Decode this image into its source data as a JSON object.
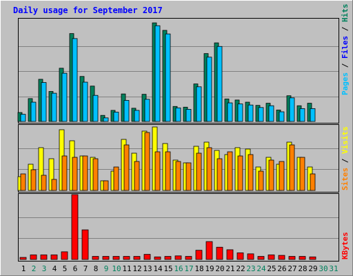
{
  "chart_data": {
    "type": "bar",
    "title": "Daily usage for September 2017",
    "categories": [
      "1",
      "2",
      "3",
      "4",
      "5",
      "6",
      "7",
      "8",
      "9",
      "10",
      "11",
      "12",
      "13",
      "14",
      "15",
      "16",
      "17",
      "18",
      "19",
      "20",
      "21",
      "22",
      "23",
      "24",
      "25",
      "26",
      "27",
      "28",
      "29",
      "30",
      "31"
    ],
    "weekend_days": [
      "2",
      "3",
      "9",
      "10",
      "16",
      "17",
      "23",
      "24",
      "30",
      "31"
    ],
    "panels": [
      {
        "id": "hits_files_pages",
        "axis_max_label": "282",
        "ylim": [
          0,
          282
        ],
        "ylabel_parts": [
          "Pages",
          "Files",
          "Hits"
        ],
        "series": [
          {
            "name": "Hits",
            "color": "#00805c",
            "values": [
              25,
              64,
              118,
              84,
              149,
              246,
              126,
              99,
              17,
              31,
              77,
              37,
              76,
              276,
              255,
              42,
              40,
              105,
              190,
              220,
              63,
              60,
              54,
              45,
              51,
              32,
              72,
              44,
              51
            ]
          },
          {
            "name": "Files",
            "color": "#00c0ff",
            "values": [
              20,
              54,
              109,
              79,
              135,
              232,
              110,
              73,
              10,
              26,
              59,
              31,
              62,
              268,
              245,
              38,
              34,
              97,
              180,
              210,
              52,
              49,
              46,
              39,
              44,
              27,
              66,
              36,
              36
            ]
          },
          {
            "name": "Pages",
            "color": "#00c0ff",
            "values": [
              0,
              0,
              0,
              0,
              0,
              0,
              0,
              0,
              0,
              0,
              0,
              0,
              0,
              0,
              0,
              0,
              0,
              0,
              0,
              0,
              0,
              0,
              0,
              0,
              0,
              0,
              0,
              0,
              0
            ]
          }
        ]
      },
      {
        "id": "visits_sites",
        "axis_max_label": "46",
        "ylim": [
          0,
          46
        ],
        "ylabel_parts": [
          "Sites",
          "Visits"
        ],
        "series": [
          {
            "name": "Visits",
            "color": "#ffff00",
            "values": [
              10,
              19,
              31,
              23,
              44,
              36,
              25,
              24,
              7,
              14,
              37,
              27,
              43,
              46,
              34,
              22,
              20,
              32,
              35,
              29,
              26,
              31,
              30,
              17,
              24,
              19,
              35,
              24,
              17
            ]
          },
          {
            "name": "Sites",
            "color": "#ff8000",
            "values": [
              12,
              15,
              11,
              8,
              25,
              24,
              25,
              23,
              7,
              17,
              33,
              21,
              42,
              28,
              28,
              21,
              20,
              27,
              31,
              23,
              28,
              25,
              26,
              14,
              22,
              21,
              33,
              24,
              12
            ]
          }
        ]
      },
      {
        "id": "kbytes",
        "axis_max_label": "12705",
        "ylim": [
          0,
          12705
        ],
        "ylabel_parts": [
          "KBytes"
        ],
        "series": [
          {
            "name": "KBytes",
            "color": "#ff0000",
            "values": [
              400,
              900,
              900,
              900,
              1500,
              12705,
              5800,
              600,
              600,
              600,
              600,
              600,
              1000,
              500,
              600,
              700,
              600,
              1800,
              3500,
              2400,
              1900,
              1300,
              1100,
              600,
              900,
              800,
              600,
              600,
              500
            ]
          }
        ]
      }
    ],
    "colors": {
      "background": "#c0c0c0",
      "title": "#0000ff",
      "grid": "#808080",
      "border": "#000000",
      "weekday_label": "#000000",
      "weekend_label": "#00805c",
      "ylabel_pages": "#00c0ff",
      "ylabel_files": "#0000ff",
      "ylabel_hits": "#00805c",
      "ylabel_sites": "#ff8000",
      "ylabel_visits": "#ffff00",
      "ylabel_kbytes": "#ff0000"
    }
  }
}
